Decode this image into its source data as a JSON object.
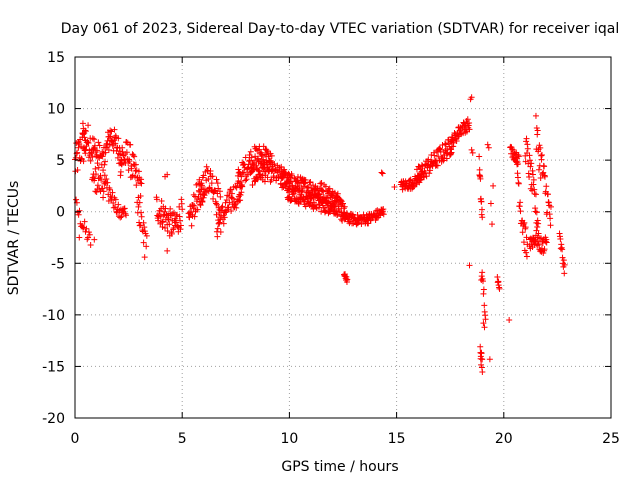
{
  "chart_data": {
    "type": "scatter",
    "title": "Day 061 of 2023, Sidereal Day-to-day VTEC variation (SDTVAR) for receiver iqal",
    "xlabel": "GPS time / hours",
    "ylabel": "SDTVAR / TECUs",
    "xlim": [
      0,
      25
    ],
    "ylim": [
      -20,
      15
    ],
    "x_ticks": [
      0,
      5,
      10,
      15,
      20,
      25
    ],
    "y_ticks": [
      -20,
      -15,
      -10,
      -5,
      0,
      5,
      10,
      15
    ],
    "grid": true,
    "marker": "+",
    "color": "#ff0000",
    "series": [
      {
        "name": "SDTVAR",
        "segments": [
          {
            "from": 0.0,
            "to": 0.5,
            "step": 0.02,
            "base": [
              [
                0.0,
                4.5
              ],
              [
                0.25,
                6.0
              ],
              [
                0.5,
                6.5
              ]
            ],
            "amp": 1.8
          },
          {
            "from": 0.05,
            "to": 0.75,
            "step": 0.04,
            "base": [
              [
                0.05,
                0.5
              ],
              [
                0.4,
                -1.5
              ],
              [
                0.75,
                -3.0
              ]
            ],
            "amp": 0.8
          },
          {
            "from": 0.35,
            "to": 1.4,
            "step": 0.02,
            "base": [
              [
                0.35,
                7.5
              ],
              [
                0.6,
                7.0
              ],
              [
                1.0,
                5.5
              ],
              [
                1.4,
                4.5
              ]
            ],
            "amp": 1.6
          },
          {
            "from": 0.8,
            "to": 1.6,
            "step": 0.03,
            "base": [
              [
                0.8,
                3.0
              ],
              [
                1.2,
                2.5
              ],
              [
                1.6,
                2.0
              ]
            ],
            "amp": 1.0
          },
          {
            "from": 1.4,
            "to": 2.2,
            "step": 0.02,
            "base": [
              [
                1.4,
                5.5
              ],
              [
                1.65,
                7.5
              ],
              [
                1.9,
                6.5
              ],
              [
                2.2,
                5.5
              ]
            ],
            "amp": 1.3
          },
          {
            "from": 1.6,
            "to": 2.4,
            "step": 0.03,
            "base": [
              [
                1.6,
                2.0
              ],
              [
                1.9,
                0.5
              ],
              [
                2.1,
                -0.3
              ],
              [
                2.4,
                0.2
              ]
            ],
            "amp": 0.7
          },
          {
            "from": 2.1,
            "to": 3.1,
            "step": 0.02,
            "base": [
              [
                2.1,
                5.0
              ],
              [
                2.5,
                5.5
              ],
              [
                2.8,
                3.5
              ],
              [
                3.1,
                2.0
              ]
            ],
            "amp": 1.6
          },
          {
            "from": 2.9,
            "to": 3.35,
            "step": 0.03,
            "base": [
              [
                2.9,
                0.0
              ],
              [
                3.1,
                -1.0
              ],
              [
                3.35,
                -3.0
              ]
            ],
            "amp": 1.0
          },
          {
            "from": 3.8,
            "to": 5.0,
            "step": 0.02,
            "base": [
              [
                3.8,
                0.5
              ],
              [
                4.2,
                -0.5
              ],
              [
                4.6,
                -1.5
              ],
              [
                5.0,
                0.0
              ]
            ],
            "amp": 1.4
          },
          {
            "from": 5.3,
            "to": 6.0,
            "step": 0.02,
            "base": [
              [
                5.3,
                -1.5
              ],
              [
                5.6,
                1.0
              ],
              [
                6.0,
                2.5
              ]
            ],
            "amp": 1.4
          },
          {
            "from": 5.8,
            "to": 6.8,
            "step": 0.02,
            "base": [
              [
                5.8,
                1.5
              ],
              [
                6.2,
                3.5
              ],
              [
                6.6,
                2.0
              ],
              [
                6.8,
                0.5
              ]
            ],
            "amp": 1.4
          },
          {
            "from": 6.6,
            "to": 7.8,
            "step": 0.02,
            "base": [
              [
                6.6,
                -1.5
              ],
              [
                7.0,
                0.0
              ],
              [
                7.4,
                1.5
              ],
              [
                7.8,
                2.0
              ]
            ],
            "amp": 1.3
          },
          {
            "from": 7.6,
            "to": 9.2,
            "step": 0.02,
            "base": [
              [
                7.6,
                3.0
              ],
              [
                8.2,
                5.0
              ],
              [
                8.8,
                5.5
              ],
              [
                9.2,
                4.5
              ]
            ],
            "amp": 1.2
          },
          {
            "from": 8.2,
            "to": 10.0,
            "step": 0.02,
            "base": [
              [
                8.2,
                3.5
              ],
              [
                9.0,
                4.0
              ],
              [
                10.0,
                3.0
              ]
            ],
            "amp": 1.0
          },
          {
            "from": 9.6,
            "to": 12.3,
            "step": 0.02,
            "base": [
              [
                9.6,
                3.2
              ],
              [
                10.5,
                2.5
              ],
              [
                11.5,
                2.0
              ],
              [
                12.3,
                1.0
              ]
            ],
            "amp": 0.9
          },
          {
            "from": 9.9,
            "to": 12.6,
            "step": 0.02,
            "base": [
              [
                9.9,
                2.0
              ],
              [
                10.8,
                1.2
              ],
              [
                11.6,
                0.7
              ],
              [
                12.6,
                0.3
              ]
            ],
            "amp": 0.8
          },
          {
            "from": 12.4,
            "to": 14.4,
            "step": 0.02,
            "base": [
              [
                12.4,
                -0.5
              ],
              [
                13.2,
                -0.8
              ],
              [
                13.8,
                -0.6
              ],
              [
                14.4,
                0.0
              ]
            ],
            "amp": 0.5
          },
          {
            "from": 12.55,
            "to": 12.7,
            "step": 0.015,
            "base": [
              [
                12.55,
                -6.0
              ],
              [
                12.7,
                -6.7
              ]
            ],
            "amp": 0.2
          },
          {
            "from": 15.2,
            "to": 16.2,
            "step": 0.02,
            "base": [
              [
                15.2,
                2.5
              ],
              [
                15.7,
                2.7
              ],
              [
                16.2,
                3.5
              ]
            ],
            "amp": 0.5
          },
          {
            "from": 16.0,
            "to": 17.6,
            "step": 0.02,
            "base": [
              [
                16.0,
                3.5
              ],
              [
                16.8,
                5.0
              ],
              [
                17.6,
                6.5
              ]
            ],
            "amp": 0.9
          },
          {
            "from": 17.5,
            "to": 18.4,
            "step": 0.02,
            "base": [
              [
                17.5,
                6.5
              ],
              [
                18.0,
                8.0
              ],
              [
                18.4,
                8.5
              ]
            ],
            "amp": 0.6
          },
          {
            "from": 18.85,
            "to": 19.0,
            "step": 0.012,
            "base": [
              [
                18.85,
                4.5
              ],
              [
                19.0,
                -1.0
              ]
            ],
            "amp": 1.0
          },
          {
            "from": 18.9,
            "to": 19.0,
            "step": 0.01,
            "base": [
              [
                18.9,
                -13.5
              ],
              [
                19.0,
                -15.0
              ]
            ],
            "amp": 0.8
          },
          {
            "from": 18.95,
            "to": 19.15,
            "step": 0.02,
            "base": [
              [
                18.95,
                -6.0
              ],
              [
                19.15,
                -9.5
              ]
            ],
            "amp": 1.0
          },
          {
            "from": 19.7,
            "to": 19.8,
            "step": 0.02,
            "base": [
              [
                19.7,
                -6.5
              ],
              [
                19.8,
                -7.2
              ]
            ],
            "amp": 0.3
          },
          {
            "from": 20.3,
            "to": 20.7,
            "step": 0.02,
            "base": [
              [
                20.3,
                6.0
              ],
              [
                20.5,
                5.5
              ],
              [
                20.7,
                5.0
              ]
            ],
            "amp": 0.5
          },
          {
            "from": 20.6,
            "to": 21.1,
            "step": 0.02,
            "base": [
              [
                20.6,
                5.0
              ],
              [
                20.8,
                0.0
              ],
              [
                21.1,
                -4.0
              ]
            ],
            "amp": 1.5
          },
          {
            "from": 21.0,
            "to": 21.6,
            "step": 0.02,
            "base": [
              [
                21.0,
                6.5
              ],
              [
                21.3,
                3.0
              ],
              [
                21.6,
                -1.0
              ]
            ],
            "amp": 1.5
          },
          {
            "from": 21.2,
            "to": 22.0,
            "step": 0.02,
            "base": [
              [
                21.2,
                -3.0
              ],
              [
                21.5,
                -2.5
              ],
              [
                21.8,
                -3.5
              ],
              [
                22.0,
                -2.5
              ]
            ],
            "amp": 0.8
          },
          {
            "from": 21.5,
            "to": 22.2,
            "step": 0.02,
            "base": [
              [
                21.5,
                7.5
              ],
              [
                21.8,
                4.0
              ],
              [
                22.2,
                -1.0
              ]
            ],
            "amp": 1.8
          },
          {
            "from": 22.6,
            "to": 22.85,
            "step": 0.02,
            "base": [
              [
                22.6,
                -2.5
              ],
              [
                22.75,
                -4.5
              ],
              [
                22.85,
                -6.0
              ]
            ],
            "amp": 0.7
          }
        ],
        "scatter_points": [
          [
            18.5,
            11.1
          ],
          [
            18.45,
            10.9
          ],
          [
            18.5,
            6.0
          ],
          [
            18.55,
            5.7
          ],
          [
            18.4,
            -5.2
          ],
          [
            19.25,
            6.5
          ],
          [
            19.3,
            6.2
          ],
          [
            19.45,
            -1.2
          ],
          [
            19.4,
            0.8
          ],
          [
            19.5,
            2.5
          ],
          [
            19.35,
            -14.3
          ],
          [
            19.1,
            -11.2
          ],
          [
            19.05,
            -10.8
          ],
          [
            20.25,
            -10.5
          ],
          [
            19.75,
            -6.8
          ],
          [
            14.3,
            3.8
          ],
          [
            14.35,
            3.7
          ],
          [
            14.9,
            2.4
          ],
          [
            15.95,
            4.1
          ],
          [
            3.25,
            -4.4
          ],
          [
            3.2,
            -3.0
          ],
          [
            4.2,
            3.4
          ],
          [
            4.3,
            3.6
          ],
          [
            4.3,
            -3.8
          ],
          [
            0.2,
            -2.5
          ],
          [
            0.9,
            -2.7
          ],
          [
            17.9,
            8.2
          ]
        ]
      }
    ]
  }
}
